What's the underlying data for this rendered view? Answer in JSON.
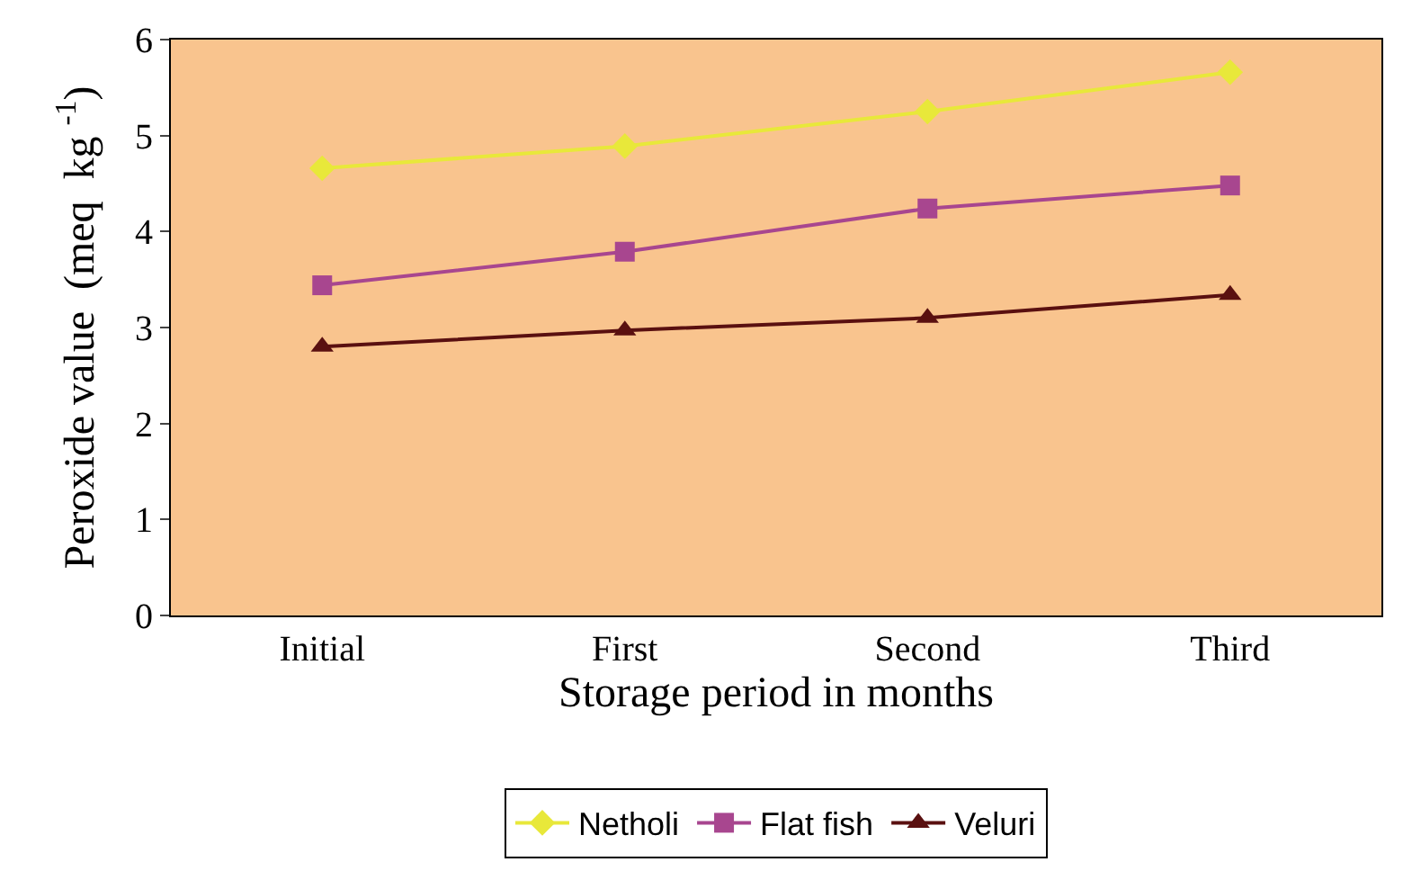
{
  "chart_data": {
    "type": "line",
    "xlabel": "Storage period in months",
    "ylabel": "Peroxide value  (meq  kg $^{-1}$)",
    "categories": [
      "Initial",
      "First",
      "Second",
      "Third"
    ],
    "series": [
      {
        "name": "Netholi",
        "color": "#e8e83a",
        "marker": "diamond",
        "values": [
          4.66,
          4.89,
          5.25,
          5.66
        ]
      },
      {
        "name": "Flat fish",
        "color": "#a8468f",
        "marker": "square",
        "values": [
          3.44,
          3.79,
          4.24,
          4.48
        ]
      },
      {
        "name": "Veluri",
        "color": "#5a1010",
        "marker": "triangle",
        "values": [
          2.8,
          2.97,
          3.1,
          3.34
        ]
      }
    ],
    "ylim": [
      0,
      6
    ],
    "yticks": [
      0,
      1,
      2,
      3,
      4,
      5,
      6
    ],
    "grid": false,
    "legend": "bottom",
    "line_style": "solid"
  }
}
